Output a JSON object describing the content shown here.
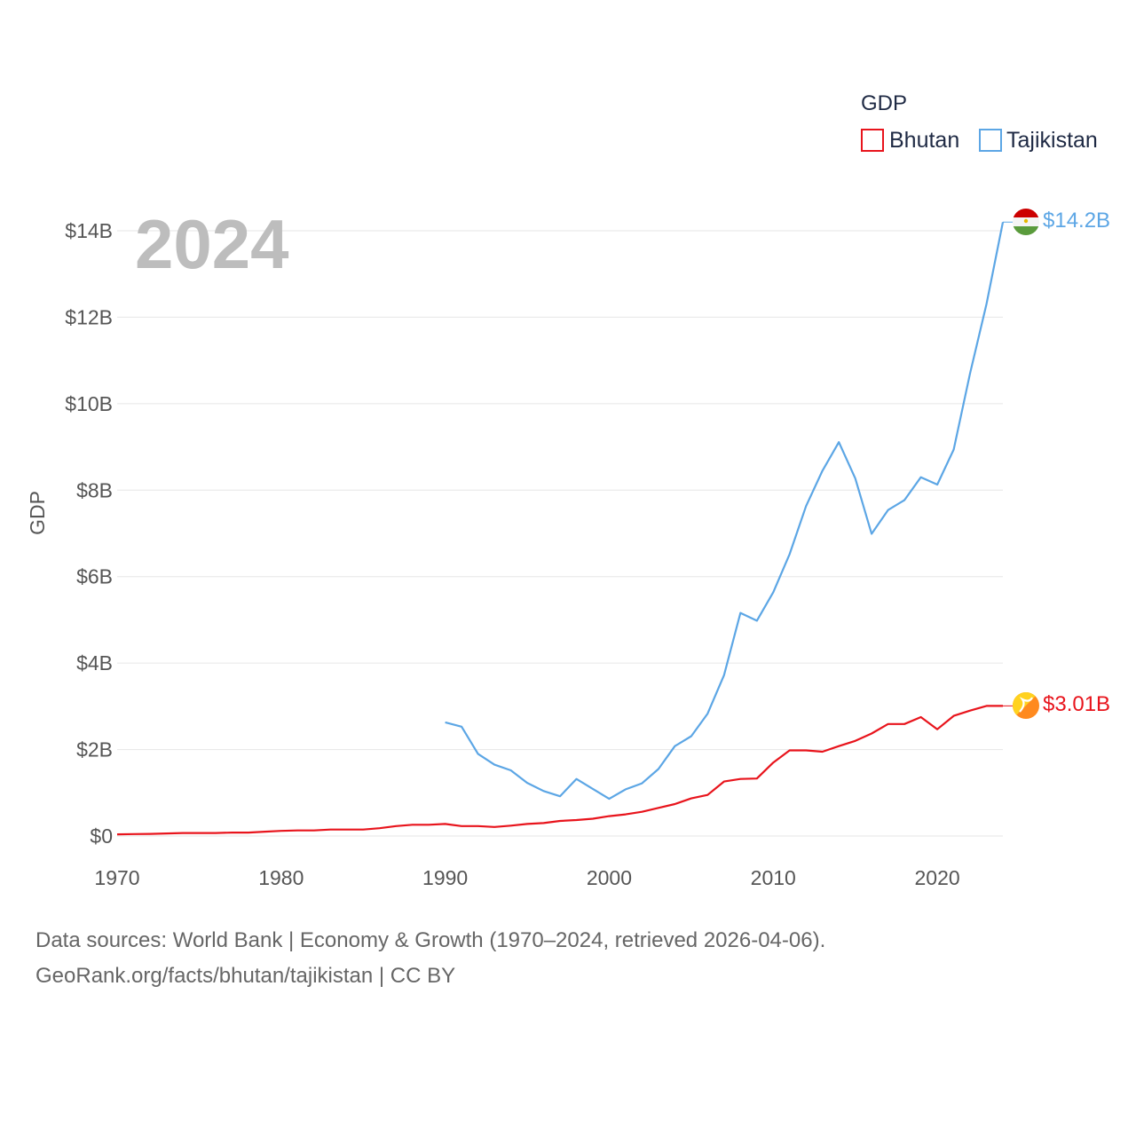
{
  "chart_data": {
    "type": "line",
    "title": "",
    "year_overlay": "2024",
    "xlabel": "",
    "ylabel": "GDP",
    "xlim": [
      1970,
      2024
    ],
    "ylim": [
      0,
      14000000000
    ],
    "grid": true,
    "x_ticks": [
      {
        "value": 1970,
        "label": "1970"
      },
      {
        "value": 1980,
        "label": "1980"
      },
      {
        "value": 1990,
        "label": "1990"
      },
      {
        "value": 2000,
        "label": "2000"
      },
      {
        "value": 2010,
        "label": "2010"
      },
      {
        "value": 2020,
        "label": "2020"
      }
    ],
    "y_ticks": [
      {
        "value": 0,
        "label": "$0"
      },
      {
        "value": 2000000000,
        "label": "$2B"
      },
      {
        "value": 4000000000,
        "label": "$4B"
      },
      {
        "value": 6000000000,
        "label": "$6B"
      },
      {
        "value": 8000000000,
        "label": "$8B"
      },
      {
        "value": 10000000000,
        "label": "$10B"
      },
      {
        "value": 12000000000,
        "label": "$12B"
      },
      {
        "value": 14000000000,
        "label": "$14B"
      }
    ],
    "legend": {
      "title": "GDP",
      "position": "top-right"
    },
    "series": [
      {
        "name": "Bhutan",
        "color": "#e8141c",
        "icon": "bhutan-flag-icon",
        "end_label": "$3.01B",
        "points": [
          [
            1970,
            0.04
          ],
          [
            1971,
            0.045
          ],
          [
            1972,
            0.05
          ],
          [
            1973,
            0.06
          ],
          [
            1974,
            0.07
          ],
          [
            1975,
            0.07
          ],
          [
            1976,
            0.07
          ],
          [
            1977,
            0.08
          ],
          [
            1978,
            0.08
          ],
          [
            1979,
            0.1
          ],
          [
            1980,
            0.12
          ],
          [
            1981,
            0.13
          ],
          [
            1982,
            0.13
          ],
          [
            1983,
            0.15
          ],
          [
            1984,
            0.15
          ],
          [
            1985,
            0.15
          ],
          [
            1986,
            0.18
          ],
          [
            1987,
            0.23
          ],
          [
            1988,
            0.26
          ],
          [
            1989,
            0.26
          ],
          [
            1990,
            0.28
          ],
          [
            1991,
            0.23
          ],
          [
            1992,
            0.23
          ],
          [
            1993,
            0.21
          ],
          [
            1994,
            0.24
          ],
          [
            1995,
            0.28
          ],
          [
            1996,
            0.3
          ],
          [
            1997,
            0.35
          ],
          [
            1998,
            0.37
          ],
          [
            1999,
            0.4
          ],
          [
            2000,
            0.46
          ],
          [
            2001,
            0.5
          ],
          [
            2002,
            0.56
          ],
          [
            2003,
            0.65
          ],
          [
            2004,
            0.74
          ],
          [
            2005,
            0.87
          ],
          [
            2006,
            0.95
          ],
          [
            2007,
            1.26
          ],
          [
            2008,
            1.32
          ],
          [
            2009,
            1.33
          ],
          [
            2010,
            1.7
          ],
          [
            2011,
            1.98
          ],
          [
            2012,
            1.98
          ],
          [
            2013,
            1.95
          ],
          [
            2014,
            2.08
          ],
          [
            2015,
            2.2
          ],
          [
            2016,
            2.37
          ],
          [
            2017,
            2.59
          ],
          [
            2018,
            2.59
          ],
          [
            2019,
            2.75
          ],
          [
            2020,
            2.47
          ],
          [
            2021,
            2.78
          ],
          [
            2022,
            2.9
          ],
          [
            2023,
            3.01
          ],
          [
            2024,
            3.01
          ]
        ]
      },
      {
        "name": "Tajikistan",
        "color": "#5ca6e5",
        "icon": "tajikistan-flag-icon",
        "end_label": "$14.2B",
        "points": [
          [
            1990,
            2.63
          ],
          [
            1991,
            2.53
          ],
          [
            1992,
            1.9
          ],
          [
            1993,
            1.65
          ],
          [
            1994,
            1.52
          ],
          [
            1995,
            1.23
          ],
          [
            1996,
            1.04
          ],
          [
            1997,
            0.92
          ],
          [
            1998,
            1.32
          ],
          [
            1999,
            1.09
          ],
          [
            2000,
            0.86
          ],
          [
            2001,
            1.08
          ],
          [
            2002,
            1.22
          ],
          [
            2003,
            1.55
          ],
          [
            2004,
            2.08
          ],
          [
            2005,
            2.31
          ],
          [
            2006,
            2.83
          ],
          [
            2007,
            3.72
          ],
          [
            2008,
            5.16
          ],
          [
            2009,
            4.98
          ],
          [
            2010,
            5.64
          ],
          [
            2011,
            6.52
          ],
          [
            2012,
            7.63
          ],
          [
            2013,
            8.45
          ],
          [
            2014,
            9.11
          ],
          [
            2015,
            8.27
          ],
          [
            2016,
            6.99
          ],
          [
            2017,
            7.54
          ],
          [
            2018,
            7.77
          ],
          [
            2019,
            8.3
          ],
          [
            2020,
            8.13
          ],
          [
            2021,
            8.94
          ],
          [
            2022,
            10.7
          ],
          [
            2023,
            12.3
          ],
          [
            2024,
            14.2
          ]
        ]
      }
    ]
  },
  "footer": {
    "line1": "Data sources: World Bank | Economy & Growth (1970–2024, retrieved 2026-04-06).",
    "line2": "GeoRank.org/facts/bhutan/tajikistan | CC BY"
  }
}
